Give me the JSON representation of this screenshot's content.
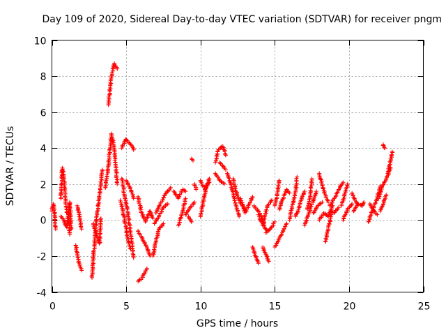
{
  "chart_data": {
    "type": "scatter",
    "title": "Day 109 of 2020, Sidereal Day-to-day VTEC variation (SDTVAR) for receiver pngm",
    "xlabel": "GPS time / hours",
    "ylabel": "SDTVAR / TECUs",
    "xlim": [
      0,
      25
    ],
    "ylim": [
      -4,
      10
    ],
    "xticks": [
      "0",
      "5",
      "10",
      "15",
      "20",
      "25"
    ],
    "yticks": [
      "-4",
      "-2",
      "0",
      "2",
      "4",
      "6",
      "8",
      "10"
    ],
    "grid": true,
    "marker": "+",
    "series_color": "#ff0000",
    "tracks": [
      [
        [
          0.0,
          0.5
        ],
        [
          0.1,
          0.9
        ],
        [
          0.2,
          0.2
        ],
        [
          0.25,
          -0.5
        ]
      ],
      [
        [
          0.6,
          1.2
        ],
        [
          0.7,
          2.9
        ],
        [
          0.8,
          2.5
        ],
        [
          0.9,
          1.4
        ],
        [
          1.0,
          0.5
        ],
        [
          1.1,
          0.3
        ],
        [
          1.2,
          -0.8
        ]
      ],
      [
        [
          0.6,
          0.2
        ],
        [
          0.8,
          0.0
        ],
        [
          1.0,
          -0.4
        ],
        [
          1.2,
          1.0
        ],
        [
          1.3,
          -0.5
        ]
      ],
      [
        [
          1.6,
          -1.4
        ],
        [
          1.8,
          -2.3
        ],
        [
          2.0,
          -2.8
        ]
      ],
      [
        [
          1.7,
          0.8
        ],
        [
          1.9,
          0.1
        ],
        [
          2.0,
          -0.5
        ]
      ],
      [
        [
          2.7,
          -3.2
        ],
        [
          2.8,
          -2.0
        ],
        [
          2.9,
          -1.0
        ],
        [
          3.0,
          0.0
        ],
        [
          3.2,
          1.4
        ],
        [
          3.4,
          2.8
        ]
      ],
      [
        [
          2.8,
          -0.2
        ],
        [
          3.0,
          -0.8
        ],
        [
          3.2,
          -1.3
        ],
        [
          3.3,
          0.1
        ]
      ],
      [
        [
          3.6,
          1.8
        ],
        [
          3.8,
          3.0
        ],
        [
          4.0,
          4.8
        ],
        [
          4.2,
          4.0
        ],
        [
          4.4,
          2.0
        ]
      ],
      [
        [
          3.8,
          6.4
        ],
        [
          3.9,
          7.2
        ],
        [
          4.0,
          8.0
        ],
        [
          4.2,
          8.7
        ],
        [
          4.4,
          8.4
        ]
      ],
      [
        [
          4.7,
          2.3
        ],
        [
          4.9,
          1.3
        ],
        [
          5.1,
          0.5
        ],
        [
          5.3,
          -0.8
        ],
        [
          5.5,
          -2.1
        ]
      ],
      [
        [
          4.7,
          4.0
        ],
        [
          5.0,
          4.5
        ],
        [
          5.3,
          4.2
        ],
        [
          5.5,
          3.9
        ]
      ],
      [
        [
          5.0,
          2.2
        ],
        [
          5.2,
          1.9
        ],
        [
          5.4,
          1.5
        ],
        [
          5.5,
          1.2
        ]
      ],
      [
        [
          4.6,
          1.1
        ],
        [
          4.9,
          0.0
        ],
        [
          5.1,
          -1.0
        ],
        [
          5.3,
          -1.6
        ]
      ],
      [
        [
          5.8,
          -3.4
        ],
        [
          6.0,
          -3.3
        ],
        [
          6.2,
          -3.0
        ],
        [
          6.4,
          -2.7
        ]
      ],
      [
        [
          5.8,
          1.3
        ],
        [
          6.0,
          0.5
        ],
        [
          6.3,
          -0.1
        ],
        [
          6.6,
          0.5
        ],
        [
          6.8,
          0.1
        ]
      ],
      [
        [
          5.8,
          -0.6
        ],
        [
          6.1,
          -1.1
        ],
        [
          6.4,
          -1.5
        ],
        [
          6.6,
          -2.0
        ]
      ],
      [
        [
          6.8,
          -2.0
        ],
        [
          7.0,
          -1.2
        ],
        [
          7.2,
          -0.5
        ],
        [
          7.5,
          -0.2
        ]
      ],
      [
        [
          7.0,
          0.4
        ],
        [
          7.3,
          0.9
        ],
        [
          7.6,
          1.4
        ],
        [
          8.0,
          1.8
        ]
      ],
      [
        [
          6.9,
          -0.2
        ],
        [
          7.2,
          0.2
        ],
        [
          7.5,
          0.7
        ],
        [
          7.8,
          0.9
        ]
      ],
      [
        [
          8.2,
          1.6
        ],
        [
          8.5,
          1.2
        ],
        [
          8.8,
          1.7
        ],
        [
          9.0,
          1.6
        ]
      ],
      [
        [
          8.5,
          -0.3
        ],
        [
          8.8,
          0.5
        ],
        [
          9.0,
          1.2
        ]
      ],
      [
        [
          9.0,
          0.3
        ],
        [
          9.3,
          0.7
        ],
        [
          9.6,
          1.0
        ]
      ],
      [
        [
          9.2,
          0.2
        ],
        [
          9.4,
          -0.1
        ]
      ],
      [
        [
          9.6,
          2.0
        ],
        [
          9.7,
          1.7
        ]
      ],
      [
        [
          9.4,
          3.4
        ],
        [
          9.5,
          3.3
        ]
      ],
      [
        [
          10.0,
          0.2
        ],
        [
          10.2,
          1.1
        ],
        [
          10.4,
          1.9
        ],
        [
          10.6,
          2.3
        ]
      ],
      [
        [
          10.0,
          2.2
        ],
        [
          10.3,
          1.7
        ],
        [
          10.6,
          2.1
        ]
      ],
      [
        [
          11.0,
          3.2
        ],
        [
          11.2,
          3.9
        ],
        [
          11.5,
          4.1
        ],
        [
          11.7,
          3.6
        ]
      ],
      [
        [
          11.0,
          2.6
        ],
        [
          11.3,
          2.2
        ],
        [
          11.6,
          2.0
        ]
      ],
      [
        [
          11.3,
          3.2
        ],
        [
          11.5,
          3.0
        ],
        [
          11.7,
          2.8
        ]
      ],
      [
        [
          11.8,
          2.6
        ],
        [
          12.0,
          2.1
        ],
        [
          12.2,
          1.5
        ],
        [
          12.4,
          0.8
        ],
        [
          12.6,
          0.2
        ]
      ],
      [
        [
          12.2,
          2.3
        ],
        [
          12.4,
          1.6
        ],
        [
          12.6,
          1.1
        ],
        [
          12.9,
          0.7
        ],
        [
          13.1,
          0.5
        ]
      ],
      [
        [
          12.7,
          1.2
        ],
        [
          13.0,
          0.4
        ],
        [
          13.3,
          0.9
        ],
        [
          13.5,
          1.3
        ]
      ],
      [
        [
          13.5,
          -1.5
        ],
        [
          13.7,
          -2.0
        ],
        [
          13.9,
          -2.4
        ]
      ],
      [
        [
          13.6,
          0.8
        ],
        [
          13.9,
          0.5
        ],
        [
          14.1,
          0.2
        ],
        [
          14.3,
          -0.4
        ],
        [
          14.5,
          -0.6
        ]
      ],
      [
        [
          13.9,
          0.3
        ],
        [
          14.2,
          -0.3
        ],
        [
          14.5,
          0.8
        ],
        [
          14.8,
          1.1
        ]
      ],
      [
        [
          14.2,
          -1.5
        ],
        [
          14.4,
          -1.9
        ],
        [
          14.6,
          -2.3
        ]
      ],
      [
        [
          14.4,
          -0.7
        ],
        [
          14.8,
          -0.4
        ],
        [
          15.0,
          -0.1
        ]
      ],
      [
        [
          15.0,
          -1.5
        ],
        [
          15.2,
          -1.2
        ],
        [
          15.5,
          -0.7
        ],
        [
          15.8,
          -0.2
        ]
      ],
      [
        [
          15.0,
          0.8
        ],
        [
          15.2,
          1.6
        ],
        [
          15.3,
          2.2
        ]
      ],
      [
        [
          15.3,
          0.6
        ],
        [
          15.5,
          1.1
        ],
        [
          15.8,
          1.7
        ],
        [
          16.0,
          1.5
        ]
      ],
      [
        [
          16.0,
          0.0
        ],
        [
          16.2,
          0.9
        ],
        [
          16.4,
          1.6
        ],
        [
          16.5,
          2.4
        ]
      ],
      [
        [
          16.4,
          0.2
        ],
        [
          16.6,
          0.6
        ],
        [
          16.8,
          1.2
        ],
        [
          17.0,
          1.6
        ]
      ],
      [
        [
          17.0,
          -0.3
        ],
        [
          17.3,
          0.4
        ],
        [
          17.6,
          1.1
        ],
        [
          17.8,
          1.6
        ]
      ],
      [
        [
          17.2,
          0.6
        ],
        [
          17.4,
          1.4
        ],
        [
          17.5,
          2.3
        ]
      ],
      [
        [
          17.6,
          0.4
        ],
        [
          17.9,
          0.8
        ],
        [
          18.2,
          1.0
        ]
      ],
      [
        [
          18.0,
          2.6
        ],
        [
          18.2,
          1.9
        ],
        [
          18.4,
          1.4
        ],
        [
          18.6,
          1.0
        ]
      ],
      [
        [
          18.0,
          0.0
        ],
        [
          18.3,
          0.4
        ],
        [
          18.6,
          0.2
        ],
        [
          18.9,
          0.8
        ]
      ],
      [
        [
          18.4,
          -1.2
        ],
        [
          18.6,
          -0.5
        ],
        [
          18.8,
          0.3
        ]
      ],
      [
        [
          18.7,
          0.8
        ],
        [
          19.0,
          1.2
        ],
        [
          19.3,
          1.7
        ],
        [
          19.6,
          2.1
        ]
      ],
      [
        [
          18.8,
          0.5
        ],
        [
          19.0,
          0.4
        ],
        [
          19.3,
          0.7
        ]
      ],
      [
        [
          19.5,
          0.8
        ],
        [
          19.7,
          1.4
        ],
        [
          19.9,
          2.0
        ]
      ],
      [
        [
          19.6,
          0.0
        ],
        [
          19.9,
          0.6
        ],
        [
          20.2,
          0.9
        ]
      ],
      [
        [
          20.2,
          1.5
        ],
        [
          20.4,
          1.1
        ],
        [
          20.6,
          0.9
        ]
      ],
      [
        [
          20.3,
          0.5
        ],
        [
          20.6,
          0.9
        ],
        [
          20.9,
          0.8
        ],
        [
          21.0,
          1.0
        ]
      ],
      [
        [
          21.3,
          -0.1
        ],
        [
          21.6,
          0.6
        ],
        [
          21.9,
          1.3
        ],
        [
          22.1,
          1.9
        ]
      ],
      [
        [
          21.4,
          0.9
        ],
        [
          21.7,
          0.5
        ],
        [
          21.9,
          0.3
        ]
      ],
      [
        [
          22.0,
          1.2
        ],
        [
          22.2,
          1.8
        ],
        [
          22.5,
          2.3
        ],
        [
          22.8,
          2.9
        ]
      ],
      [
        [
          22.3,
          4.2
        ],
        [
          22.4,
          4.0
        ]
      ],
      [
        [
          22.6,
          2.6
        ],
        [
          22.8,
          3.3
        ],
        [
          22.9,
          3.8
        ]
      ],
      [
        [
          22.1,
          0.5
        ],
        [
          22.3,
          0.9
        ],
        [
          22.5,
          1.4
        ]
      ]
    ]
  }
}
